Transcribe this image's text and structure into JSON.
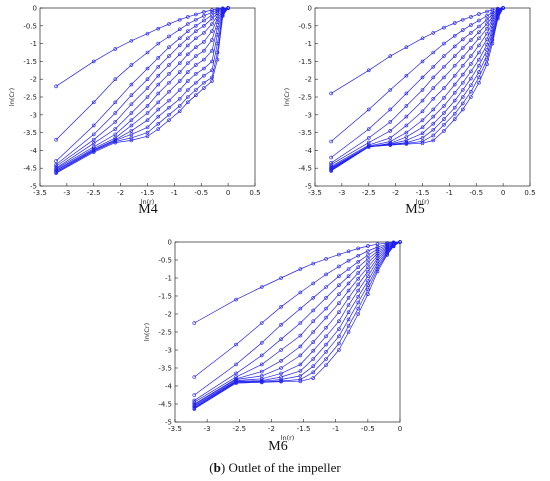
{
  "figure_caption": {
    "tag": "b",
    "text": "Outlet of the impeller"
  },
  "chart_data": [
    {
      "type": "line",
      "subplot_label": "M4",
      "xlabel": "ln(r)",
      "ylabel": "ln(Cr)",
      "xlim": [
        -3.5,
        0.5
      ],
      "ylim": [
        -5,
        0
      ],
      "xticks": [
        "-3.5",
        "-3",
        "-2.5",
        "-2",
        "-1.5",
        "-1",
        "-0.5",
        "0",
        "0.5"
      ],
      "yticks": [
        "0",
        "-0.5",
        "-1",
        "-1.5",
        "-2",
        "-2.5",
        "-3",
        "-3.5",
        "-4",
        "-4.5",
        "-5"
      ],
      "x": [
        -3.2,
        -2.5,
        -2.1,
        -1.8,
        -1.5,
        -1.3,
        -1.1,
        -0.9,
        -0.75,
        -0.6,
        -0.45,
        -0.3,
        -0.2,
        -0.1,
        0.0
      ],
      "series": [
        {
          "values": [
            -2.2,
            -1.5,
            -1.15,
            -0.92,
            -0.72,
            -0.58,
            -0.45,
            -0.33,
            -0.25,
            -0.18,
            -0.11,
            -0.06,
            -0.03,
            -0.01,
            0
          ]
        },
        {
          "values": [
            -3.7,
            -2.65,
            -2.0,
            -1.6,
            -1.25,
            -1.0,
            -0.8,
            -0.6,
            -0.45,
            -0.33,
            -0.22,
            -0.12,
            -0.06,
            -0.02,
            0
          ]
        },
        {
          "values": [
            -4.3,
            -3.3,
            -2.65,
            -2.15,
            -1.7,
            -1.4,
            -1.1,
            -0.85,
            -0.65,
            -0.5,
            -0.35,
            -0.2,
            -0.1,
            -0.03,
            0
          ]
        },
        {
          "values": [
            -4.4,
            -3.55,
            -2.95,
            -2.45,
            -2.0,
            -1.65,
            -1.35,
            -1.05,
            -0.85,
            -0.65,
            -0.5,
            -0.3,
            -0.15,
            -0.05,
            0
          ]
        },
        {
          "values": [
            -4.45,
            -3.7,
            -3.2,
            -2.7,
            -2.25,
            -1.9,
            -1.6,
            -1.3,
            -1.05,
            -0.85,
            -0.7,
            -0.45,
            -0.22,
            -0.07,
            0
          ]
        },
        {
          "values": [
            -4.5,
            -3.8,
            -3.4,
            -2.95,
            -2.5,
            -2.15,
            -1.85,
            -1.55,
            -1.3,
            -1.1,
            -0.95,
            -0.65,
            -0.3,
            -0.09,
            0
          ]
        },
        {
          "values": [
            -4.52,
            -3.9,
            -3.55,
            -3.15,
            -2.75,
            -2.4,
            -2.1,
            -1.8,
            -1.55,
            -1.35,
            -1.2,
            -0.9,
            -0.4,
            -0.11,
            0
          ]
        },
        {
          "values": [
            -4.55,
            -3.95,
            -3.65,
            -3.3,
            -2.95,
            -2.65,
            -2.35,
            -2.05,
            -1.8,
            -1.6,
            -1.45,
            -1.2,
            -0.55,
            -0.13,
            0
          ]
        },
        {
          "values": [
            -4.57,
            -3.98,
            -3.7,
            -3.45,
            -3.15,
            -2.85,
            -2.6,
            -2.3,
            -2.05,
            -1.85,
            -1.7,
            -1.5,
            -0.75,
            -0.15,
            0
          ]
        },
        {
          "values": [
            -4.6,
            -4.0,
            -3.72,
            -3.55,
            -3.35,
            -3.05,
            -2.8,
            -2.55,
            -2.3,
            -2.1,
            -1.9,
            -1.75,
            -1.0,
            -0.18,
            0
          ]
        },
        {
          "values": [
            -4.62,
            -4.02,
            -3.75,
            -3.65,
            -3.5,
            -3.25,
            -3.0,
            -2.75,
            -2.5,
            -2.3,
            -2.1,
            -1.95,
            -1.25,
            -0.2,
            0
          ]
        },
        {
          "values": [
            -4.64,
            -4.05,
            -3.78,
            -3.72,
            -3.6,
            -3.4,
            -3.15,
            -2.9,
            -2.65,
            -2.45,
            -2.25,
            -2.05,
            -1.45,
            -0.22,
            0
          ]
        }
      ]
    },
    {
      "type": "line",
      "subplot_label": "M5",
      "xlabel": "ln(r)",
      "ylabel": "ln(Cr)",
      "xlim": [
        -3.5,
        0.5
      ],
      "ylim": [
        -5,
        0
      ],
      "xticks": [
        "-3.5",
        "-3",
        "-2.5",
        "-2",
        "-1.5",
        "-1",
        "-0.5",
        "0",
        "0.5"
      ],
      "yticks": [
        "0",
        "-0.5",
        "-1",
        "-1.5",
        "-2",
        "-2.5",
        "-3",
        "-3.5",
        "-4",
        "-4.5",
        "-5"
      ],
      "x": [
        -3.2,
        -2.5,
        -2.1,
        -1.8,
        -1.5,
        -1.3,
        -1.1,
        -0.9,
        -0.75,
        -0.6,
        -0.45,
        -0.3,
        -0.2,
        -0.1,
        0.0
      ],
      "series": [
        {
          "values": [
            -2.4,
            -1.75,
            -1.35,
            -1.1,
            -0.85,
            -0.7,
            -0.55,
            -0.42,
            -0.33,
            -0.25,
            -0.17,
            -0.1,
            -0.05,
            -0.02,
            0
          ]
        },
        {
          "values": [
            -3.75,
            -2.85,
            -2.3,
            -1.9,
            -1.5,
            -1.25,
            -1.0,
            -0.78,
            -0.62,
            -0.48,
            -0.35,
            -0.22,
            -0.12,
            -0.04,
            0
          ]
        },
        {
          "values": [
            -4.2,
            -3.4,
            -2.85,
            -2.4,
            -1.95,
            -1.65,
            -1.35,
            -1.08,
            -0.88,
            -0.7,
            -0.52,
            -0.33,
            -0.18,
            -0.06,
            0
          ]
        },
        {
          "values": [
            -4.35,
            -3.65,
            -3.2,
            -2.75,
            -2.3,
            -1.95,
            -1.65,
            -1.35,
            -1.12,
            -0.9,
            -0.68,
            -0.45,
            -0.25,
            -0.08,
            0
          ]
        },
        {
          "values": [
            -4.4,
            -3.78,
            -3.45,
            -3.05,
            -2.6,
            -2.25,
            -1.95,
            -1.62,
            -1.38,
            -1.12,
            -0.85,
            -0.58,
            -0.32,
            -0.1,
            0
          ]
        },
        {
          "values": [
            -4.45,
            -3.85,
            -3.65,
            -3.3,
            -2.9,
            -2.55,
            -2.25,
            -1.9,
            -1.62,
            -1.35,
            -1.05,
            -0.72,
            -0.4,
            -0.12,
            0
          ]
        },
        {
          "values": [
            -4.48,
            -3.88,
            -3.75,
            -3.5,
            -3.15,
            -2.85,
            -2.52,
            -2.15,
            -1.87,
            -1.57,
            -1.25,
            -0.88,
            -0.5,
            -0.15,
            0
          ]
        },
        {
          "values": [
            -4.5,
            -3.9,
            -3.8,
            -3.62,
            -3.35,
            -3.05,
            -2.75,
            -2.38,
            -2.1,
            -1.78,
            -1.45,
            -1.03,
            -0.6,
            -0.18,
            0
          ]
        },
        {
          "values": [
            -4.52,
            -3.9,
            -3.82,
            -3.72,
            -3.52,
            -3.25,
            -2.95,
            -2.6,
            -2.3,
            -1.98,
            -1.62,
            -1.18,
            -0.7,
            -0.21,
            0
          ]
        },
        {
          "values": [
            -4.54,
            -3.9,
            -3.83,
            -3.78,
            -3.65,
            -3.42,
            -3.12,
            -2.8,
            -2.5,
            -2.17,
            -1.8,
            -1.32,
            -0.8,
            -0.24,
            0
          ]
        },
        {
          "values": [
            -4.56,
            -3.9,
            -3.84,
            -3.8,
            -3.75,
            -3.58,
            -3.28,
            -2.97,
            -2.68,
            -2.35,
            -1.95,
            -1.45,
            -0.9,
            -0.27,
            0
          ]
        },
        {
          "values": [
            -4.58,
            -3.9,
            -3.85,
            -3.82,
            -3.8,
            -3.72,
            -3.45,
            -3.12,
            -2.85,
            -2.5,
            -2.1,
            -1.58,
            -1.0,
            -0.3,
            0
          ]
        }
      ]
    },
    {
      "type": "line",
      "subplot_label": "M6",
      "xlabel": "ln(r)",
      "ylabel": "ln(Cr)",
      "xlim": [
        -3.5,
        0
      ],
      "ylim": [
        -5,
        0
      ],
      "xticks": [
        "-3.5",
        "-3",
        "-2.5",
        "-2",
        "-1.5",
        "-1",
        "-0.5",
        "0"
      ],
      "yticks": [
        "0",
        "-0.5",
        "-1",
        "-1.5",
        "-2",
        "-2.5",
        "-3",
        "-3.5",
        "-4",
        "-4.5",
        "-5"
      ],
      "x": [
        -3.2,
        -2.55,
        -2.15,
        -1.85,
        -1.55,
        -1.35,
        -1.15,
        -0.95,
        -0.8,
        -0.65,
        -0.5,
        -0.35,
        -0.2,
        -0.1,
        0.0
      ],
      "series": [
        {
          "values": [
            -2.25,
            -1.6,
            -1.25,
            -1.0,
            -0.75,
            -0.6,
            -0.47,
            -0.35,
            -0.26,
            -0.18,
            -0.11,
            -0.06,
            -0.03,
            -0.01,
            0
          ]
        },
        {
          "values": [
            -3.75,
            -2.85,
            -2.25,
            -1.8,
            -1.4,
            -1.15,
            -0.9,
            -0.68,
            -0.52,
            -0.38,
            -0.25,
            -0.14,
            -0.06,
            -0.02,
            0
          ]
        },
        {
          "values": [
            -4.25,
            -3.4,
            -2.8,
            -2.3,
            -1.85,
            -1.55,
            -1.25,
            -0.95,
            -0.75,
            -0.55,
            -0.36,
            -0.2,
            -0.09,
            -0.03,
            0
          ]
        },
        {
          "values": [
            -4.4,
            -3.65,
            -3.15,
            -2.7,
            -2.25,
            -1.9,
            -1.55,
            -1.2,
            -0.95,
            -0.7,
            -0.47,
            -0.26,
            -0.12,
            -0.04,
            0
          ]
        },
        {
          "values": [
            -4.45,
            -3.75,
            -3.4,
            -3.0,
            -2.6,
            -2.2,
            -1.85,
            -1.45,
            -1.15,
            -0.86,
            -0.58,
            -0.32,
            -0.15,
            -0.05,
            0
          ]
        },
        {
          "values": [
            -4.5,
            -3.8,
            -3.6,
            -3.3,
            -2.9,
            -2.5,
            -2.1,
            -1.7,
            -1.35,
            -1.02,
            -0.7,
            -0.38,
            -0.18,
            -0.06,
            0
          ]
        },
        {
          "values": [
            -4.52,
            -3.82,
            -3.72,
            -3.5,
            -3.15,
            -2.78,
            -2.38,
            -1.95,
            -1.55,
            -1.18,
            -0.82,
            -0.45,
            -0.21,
            -0.07,
            0
          ]
        },
        {
          "values": [
            -4.55,
            -3.85,
            -3.8,
            -3.65,
            -3.4,
            -3.02,
            -2.62,
            -2.2,
            -1.75,
            -1.35,
            -0.95,
            -0.52,
            -0.24,
            -0.08,
            0
          ]
        },
        {
          "values": [
            -4.57,
            -3.87,
            -3.85,
            -3.75,
            -3.58,
            -3.25,
            -2.85,
            -2.42,
            -1.95,
            -1.52,
            -1.08,
            -0.6,
            -0.27,
            -0.09,
            0
          ]
        },
        {
          "values": [
            -4.6,
            -3.88,
            -3.87,
            -3.82,
            -3.72,
            -3.45,
            -3.05,
            -2.62,
            -2.15,
            -1.68,
            -1.2,
            -0.68,
            -0.3,
            -0.1,
            0
          ]
        },
        {
          "values": [
            -4.62,
            -3.9,
            -3.88,
            -3.86,
            -3.82,
            -3.62,
            -3.25,
            -2.82,
            -2.33,
            -1.85,
            -1.32,
            -0.75,
            -0.33,
            -0.11,
            0
          ]
        },
        {
          "values": [
            -4.64,
            -3.92,
            -3.9,
            -3.88,
            -3.87,
            -3.78,
            -3.42,
            -3.0,
            -2.5,
            -2.0,
            -1.45,
            -0.82,
            -0.36,
            -0.12,
            0
          ]
        }
      ]
    }
  ],
  "colors": {
    "series": "#2222ee",
    "axis": "#222222"
  }
}
